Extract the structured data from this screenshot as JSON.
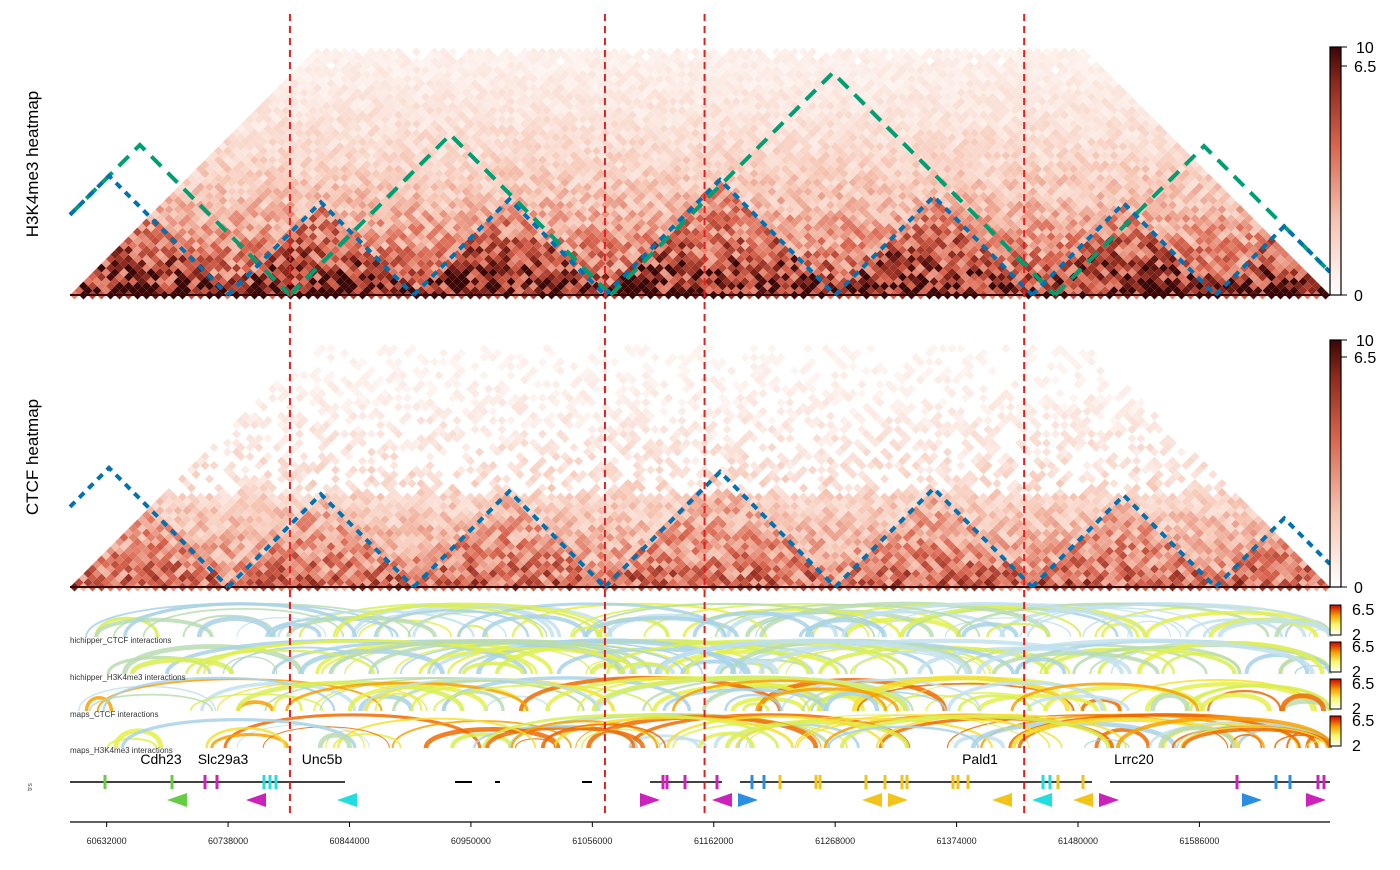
{
  "chart_data": {
    "type": "heatmap",
    "heatmaps": [
      {
        "label": "H3K4me3 heatmap",
        "scale_ticks": [
          "10",
          "6.5",
          "0"
        ],
        "scale_range": [
          0,
          10
        ],
        "tad_domains": [
          {
            "start": 60530000,
            "end": 60792000,
            "style": "green-dashed"
          },
          {
            "start": 60792000,
            "end": 61072000,
            "style": "green-dashed"
          },
          {
            "start": 61072000,
            "end": 61460000,
            "style": "green-dashed"
          },
          {
            "start": 61460000,
            "end": 61720000,
            "style": "green-dashed"
          },
          {
            "start": 60530000,
            "end": 60738000,
            "style": "blue-dashed"
          },
          {
            "start": 60738000,
            "end": 60900000,
            "style": "blue-dashed"
          },
          {
            "start": 60900000,
            "end": 61067000,
            "style": "blue-dashed"
          },
          {
            "start": 61067000,
            "end": 61268000,
            "style": "blue-dashed"
          },
          {
            "start": 61268000,
            "end": 61440000,
            "style": "blue-dashed"
          },
          {
            "start": 61440000,
            "end": 61600000,
            "style": "blue-dashed"
          },
          {
            "start": 61600000,
            "end": 61720000,
            "style": "blue-dashed"
          }
        ]
      },
      {
        "label": "CTCF heatmap",
        "scale_ticks": [
          "10",
          "6.5",
          "0"
        ],
        "scale_range": [
          0,
          10
        ],
        "tad_domains": [
          {
            "start": 60530000,
            "end": 60738000,
            "style": "blue-dashed"
          },
          {
            "start": 60738000,
            "end": 60900000,
            "style": "blue-dashed"
          },
          {
            "start": 60900000,
            "end": 61067000,
            "style": "blue-dashed"
          },
          {
            "start": 61067000,
            "end": 61268000,
            "style": "blue-dashed"
          },
          {
            "start": 61268000,
            "end": 61440000,
            "style": "blue-dashed"
          },
          {
            "start": 61440000,
            "end": 61600000,
            "style": "blue-dashed"
          },
          {
            "start": 61600000,
            "end": 61720000,
            "style": "blue-dashed"
          }
        ]
      }
    ],
    "arc_tracks": [
      {
        "label": "hichipper_CTCF interactions",
        "scale_ticks": [
          "6.5",
          "2"
        ],
        "scale_range": [
          2,
          6.5
        ]
      },
      {
        "label": "hichipper_H3K4me3 interactions",
        "scale_ticks": [
          "6.5",
          "2"
        ],
        "scale_range": [
          2,
          6.5
        ]
      },
      {
        "label": "maps_CTCF interactions",
        "scale_ticks": [
          "6.5",
          "2"
        ],
        "scale_range": [
          2,
          6.5
        ]
      },
      {
        "label": "maps_H3K4me3 interactions",
        "scale_ticks": [
          "6.5",
          "2"
        ],
        "scale_range": [
          2,
          6.5
        ]
      }
    ],
    "boundaries": [
      60792000,
      61067000,
      61154000,
      61433000
    ],
    "gene_track": {
      "label": "trs",
      "genes": [
        {
          "name": "Cdh23",
          "pos": 60660000,
          "strand": "-",
          "color": "#66cc44"
        },
        {
          "name": "Slc29a3",
          "pos": 60713000,
          "strand": "+",
          "color": "#cc22bb"
        },
        {
          "name": "Unc5b",
          "pos": 60793000,
          "strand": "-",
          "color": "#22dddd"
        },
        {
          "name": "Pald1",
          "pos": 61368000,
          "strand": "-",
          "color": "#f2c318"
        },
        {
          "name": "Lrrc20",
          "pos": 61480000,
          "strand": "+",
          "color": "#cc22bb"
        }
      ]
    },
    "x_axis": {
      "ticks": [
        "60632000",
        "60738000",
        "60844000",
        "60950000",
        "61056000",
        "61162000",
        "61268000",
        "61374000",
        "61480000",
        "61586000"
      ],
      "range": [
        60600000,
        61700000
      ]
    }
  }
}
